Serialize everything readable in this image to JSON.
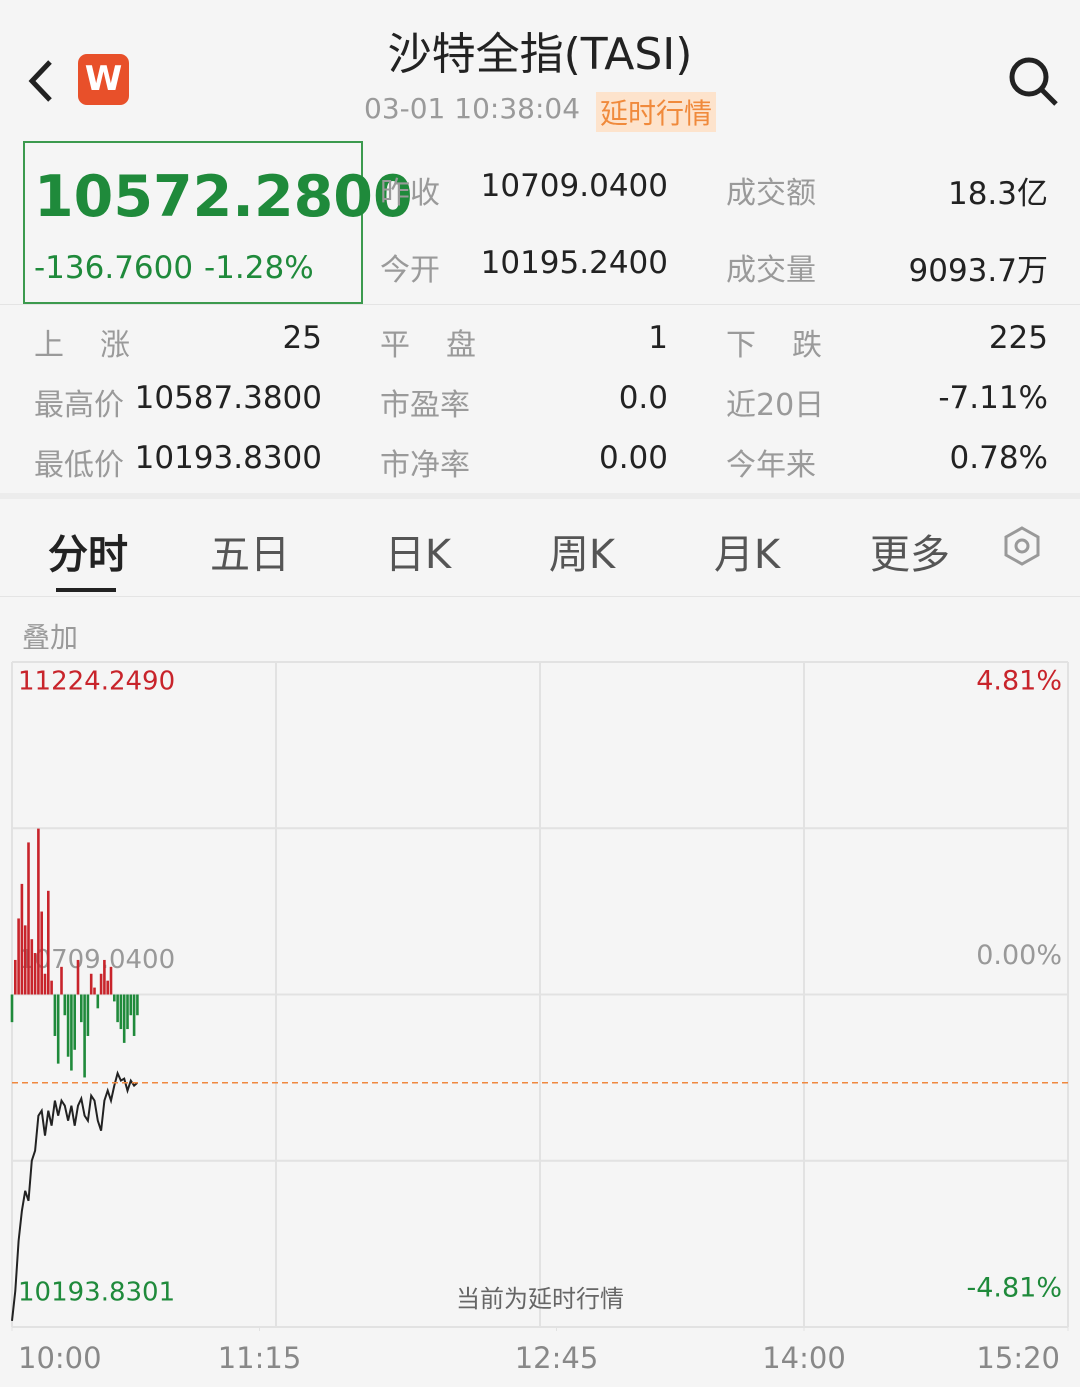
{
  "header": {
    "title": "沙特全指(TASI)",
    "app_icon": "W",
    "time": "03-01 10:38:04",
    "delay_tag": "延时行情"
  },
  "quote": {
    "price": "10572.2800",
    "change": "-136.7600",
    "change_pct": "-1.28%",
    "rows": [
      [
        {
          "label": "昨收",
          "value": "10709.0400"
        },
        {
          "label": "成交额",
          "value": "18.3亿"
        }
      ],
      [
        {
          "label": "今开",
          "value": "10195.2400"
        },
        {
          "label": "成交量",
          "value": "9093.7万"
        }
      ]
    ]
  },
  "stats": [
    [
      {
        "label": "上涨",
        "value": "25"
      },
      {
        "label": "平盘",
        "value": "1"
      },
      {
        "label": "下跌",
        "value": "225"
      }
    ],
    [
      {
        "label": "最高价",
        "value": "10587.3800"
      },
      {
        "label": "市盈率",
        "value": "0.0"
      },
      {
        "label": "近20日",
        "value": "-7.11%"
      }
    ],
    [
      {
        "label": "最低价",
        "value": "10193.8300"
      },
      {
        "label": "市净率",
        "value": "0.00"
      },
      {
        "label": "今年来",
        "value": "0.78%"
      }
    ]
  ],
  "tabs": [
    "分时",
    "五日",
    "日K",
    "周K",
    "月K",
    "更多"
  ],
  "overlay": "叠加",
  "chart_data": {
    "type": "line",
    "note": "当前为延时行情",
    "x": [
      "10:00",
      "10:01",
      "10:02",
      "10:03",
      "10:04",
      "10:05",
      "10:06",
      "10:07",
      "10:08",
      "10:09",
      "10:10",
      "10:11",
      "10:12",
      "10:13",
      "10:14",
      "10:15",
      "10:16",
      "10:17",
      "10:18",
      "10:19",
      "10:20",
      "10:21",
      "10:22",
      "10:23",
      "10:24",
      "10:25",
      "10:26",
      "10:27",
      "10:28",
      "10:29",
      "10:30",
      "10:31",
      "10:32",
      "10:33",
      "10:34",
      "10:35",
      "10:36",
      "10:37",
      "10:38"
    ],
    "xlim": [
      "10:00",
      "15:20"
    ],
    "xticks": [
      "10:00",
      "11:15",
      "12:45",
      "14:00",
      "15:20"
    ],
    "ylim": [
      10193.8301,
      11224.249
    ],
    "yticks": [
      {
        "value": 11224.249,
        "label": "11224.2490"
      },
      {
        "value": 10709.04,
        "label": "10709.0400"
      },
      10193.8301
    ],
    "y2lim": [
      -4.81,
      4.81
    ],
    "y2ticks": [
      {
        "value": 4.81,
        "label": "4.81%"
      },
      {
        "value": 0,
        "label": "0.00%"
      },
      {
        "value": -4.81,
        "label": "-4.81%"
      }
    ],
    "tick_colors": [
      "#c8242b",
      "#999999",
      "#1f8a3b"
    ],
    "current_line_color": "#f0883e",
    "series": [
      {
        "color": "#222222",
        "values": [
          10203.3,
          10249.8,
          10327.4,
          10373.9,
          10404.9,
          10389.4,
          10451.5,
          10467.0,
          10521.3,
          10529.0,
          10490.3,
          10529.0,
          10505.8,
          10544.6,
          10521.3,
          10544.6,
          10536.8,
          10513.5,
          10536.8,
          10505.8,
          10536.8,
          10547.7,
          10521.3,
          10513.5,
          10552.3,
          10544.6,
          10513.5,
          10498.0,
          10544.6,
          10560.1,
          10544.6,
          10567.8,
          10587.0,
          10575.6,
          10578.7,
          10560.1,
          10575.6,
          10567.8,
          10572.28
        ]
      },
      {
        "type": "bar",
        "axis": "y2",
        "up_color": "#c8242b",
        "down_color": "#1f8a3b",
        "values": [
          -0.4,
          0.5,
          1.1,
          1.6,
          1.0,
          2.2,
          0.8,
          0.6,
          2.4,
          1.2,
          0.3,
          1.5,
          0.2,
          -0.6,
          -1.0,
          0.4,
          -0.3,
          -0.9,
          -1.1,
          -0.8,
          0.5,
          -0.4,
          -1.2,
          -0.6,
          0.3,
          0.1,
          -0.2,
          0.3,
          0.5,
          0.2,
          0.4,
          -0.1,
          -0.4,
          -0.5,
          -0.7,
          -0.5,
          -0.3,
          -0.6,
          -0.3
        ]
      }
    ]
  }
}
